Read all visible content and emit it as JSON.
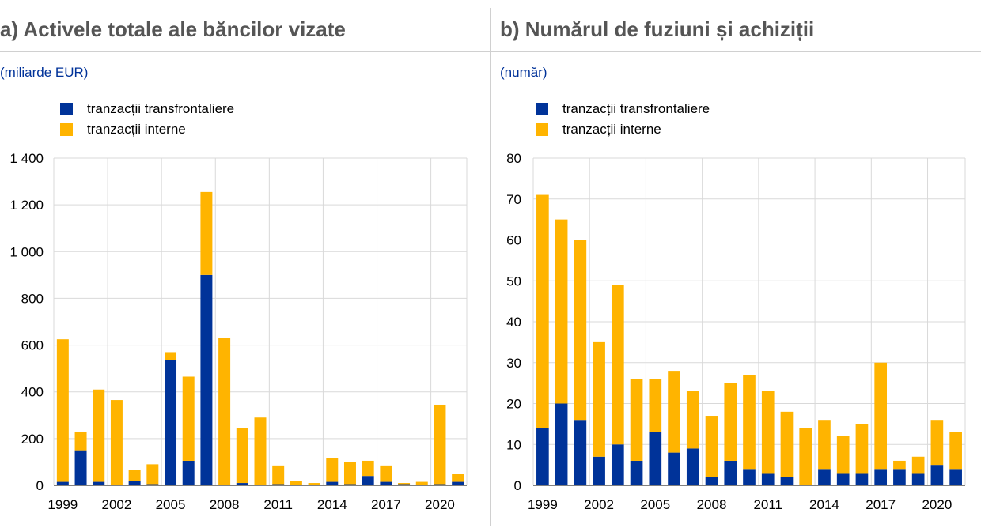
{
  "colors": {
    "cross_border": "#003399",
    "domestic": "#FFB400",
    "grid": "#d9d9d9",
    "title": "#555555",
    "unit": "#003299"
  },
  "panels": [
    {
      "title": "a) Activele totale ale băncilor vizate",
      "unit": "(miliarde EUR)",
      "legend": [
        "tranzacții transfrontaliere",
        "tranzacții interne"
      ]
    },
    {
      "title": "b) Numărul de fuziuni și achiziții",
      "unit": "(număr)",
      "legend": [
        "tranzacții transfrontaliere",
        "tranzacții interne"
      ]
    }
  ],
  "chart_data": [
    {
      "type": "bar",
      "stacked": true,
      "categories": [
        "1999",
        "2000",
        "2001",
        "2002",
        "2003",
        "2004",
        "2005",
        "2006",
        "2007",
        "2008",
        "2009",
        "2010",
        "2011",
        "2012",
        "2013",
        "2014",
        "2015",
        "2016",
        "2017",
        "2018",
        "2019",
        "2020",
        "2021"
      ],
      "x_tick_labels": [
        "1999",
        "2002",
        "2005",
        "2008",
        "2011",
        "2014",
        "2017",
        "2020"
      ],
      "y_tick_labels": [
        "0",
        "200",
        "400",
        "600",
        "800",
        "1 000",
        "1 200",
        "1 400"
      ],
      "ylim": [
        0,
        1400
      ],
      "series": [
        {
          "name": "tranzacții transfrontaliere",
          "values": [
            15,
            150,
            15,
            0,
            20,
            5,
            535,
            105,
            900,
            0,
            10,
            0,
            5,
            0,
            0,
            15,
            5,
            40,
            15,
            5,
            0,
            5,
            15
          ]
        },
        {
          "name": "tranzacții interne",
          "values": [
            610,
            80,
            395,
            365,
            45,
            85,
            35,
            360,
            355,
            630,
            235,
            290,
            80,
            20,
            10,
            100,
            95,
            65,
            70,
            5,
            15,
            340,
            35
          ]
        }
      ],
      "grid": true,
      "legend_position": "top-left"
    },
    {
      "type": "bar",
      "stacked": true,
      "categories": [
        "1999",
        "2000",
        "2001",
        "2002",
        "2003",
        "2004",
        "2005",
        "2006",
        "2007",
        "2008",
        "2009",
        "2010",
        "2011",
        "2012",
        "2013",
        "2014",
        "2015",
        "2016",
        "2017",
        "2018",
        "2019",
        "2020",
        "2021"
      ],
      "x_tick_labels": [
        "1999",
        "2002",
        "2005",
        "2008",
        "2011",
        "2014",
        "2017",
        "2020"
      ],
      "y_tick_labels": [
        "0",
        "10",
        "20",
        "30",
        "40",
        "50",
        "60",
        "70",
        "80"
      ],
      "ylim": [
        0,
        80
      ],
      "series": [
        {
          "name": "tranzacții transfrontaliere",
          "values": [
            14,
            20,
            16,
            7,
            10,
            6,
            13,
            8,
            9,
            2,
            6,
            4,
            3,
            2,
            0,
            4,
            3,
            3,
            4,
            4,
            3,
            5,
            4
          ]
        },
        {
          "name": "tranzacții interne",
          "values": [
            57,
            45,
            44,
            28,
            39,
            20,
            13,
            20,
            14,
            15,
            19,
            23,
            20,
            16,
            14,
            12,
            9,
            12,
            26,
            2,
            4,
            11,
            9
          ]
        }
      ],
      "grid": true,
      "legend_position": "top-left"
    }
  ]
}
